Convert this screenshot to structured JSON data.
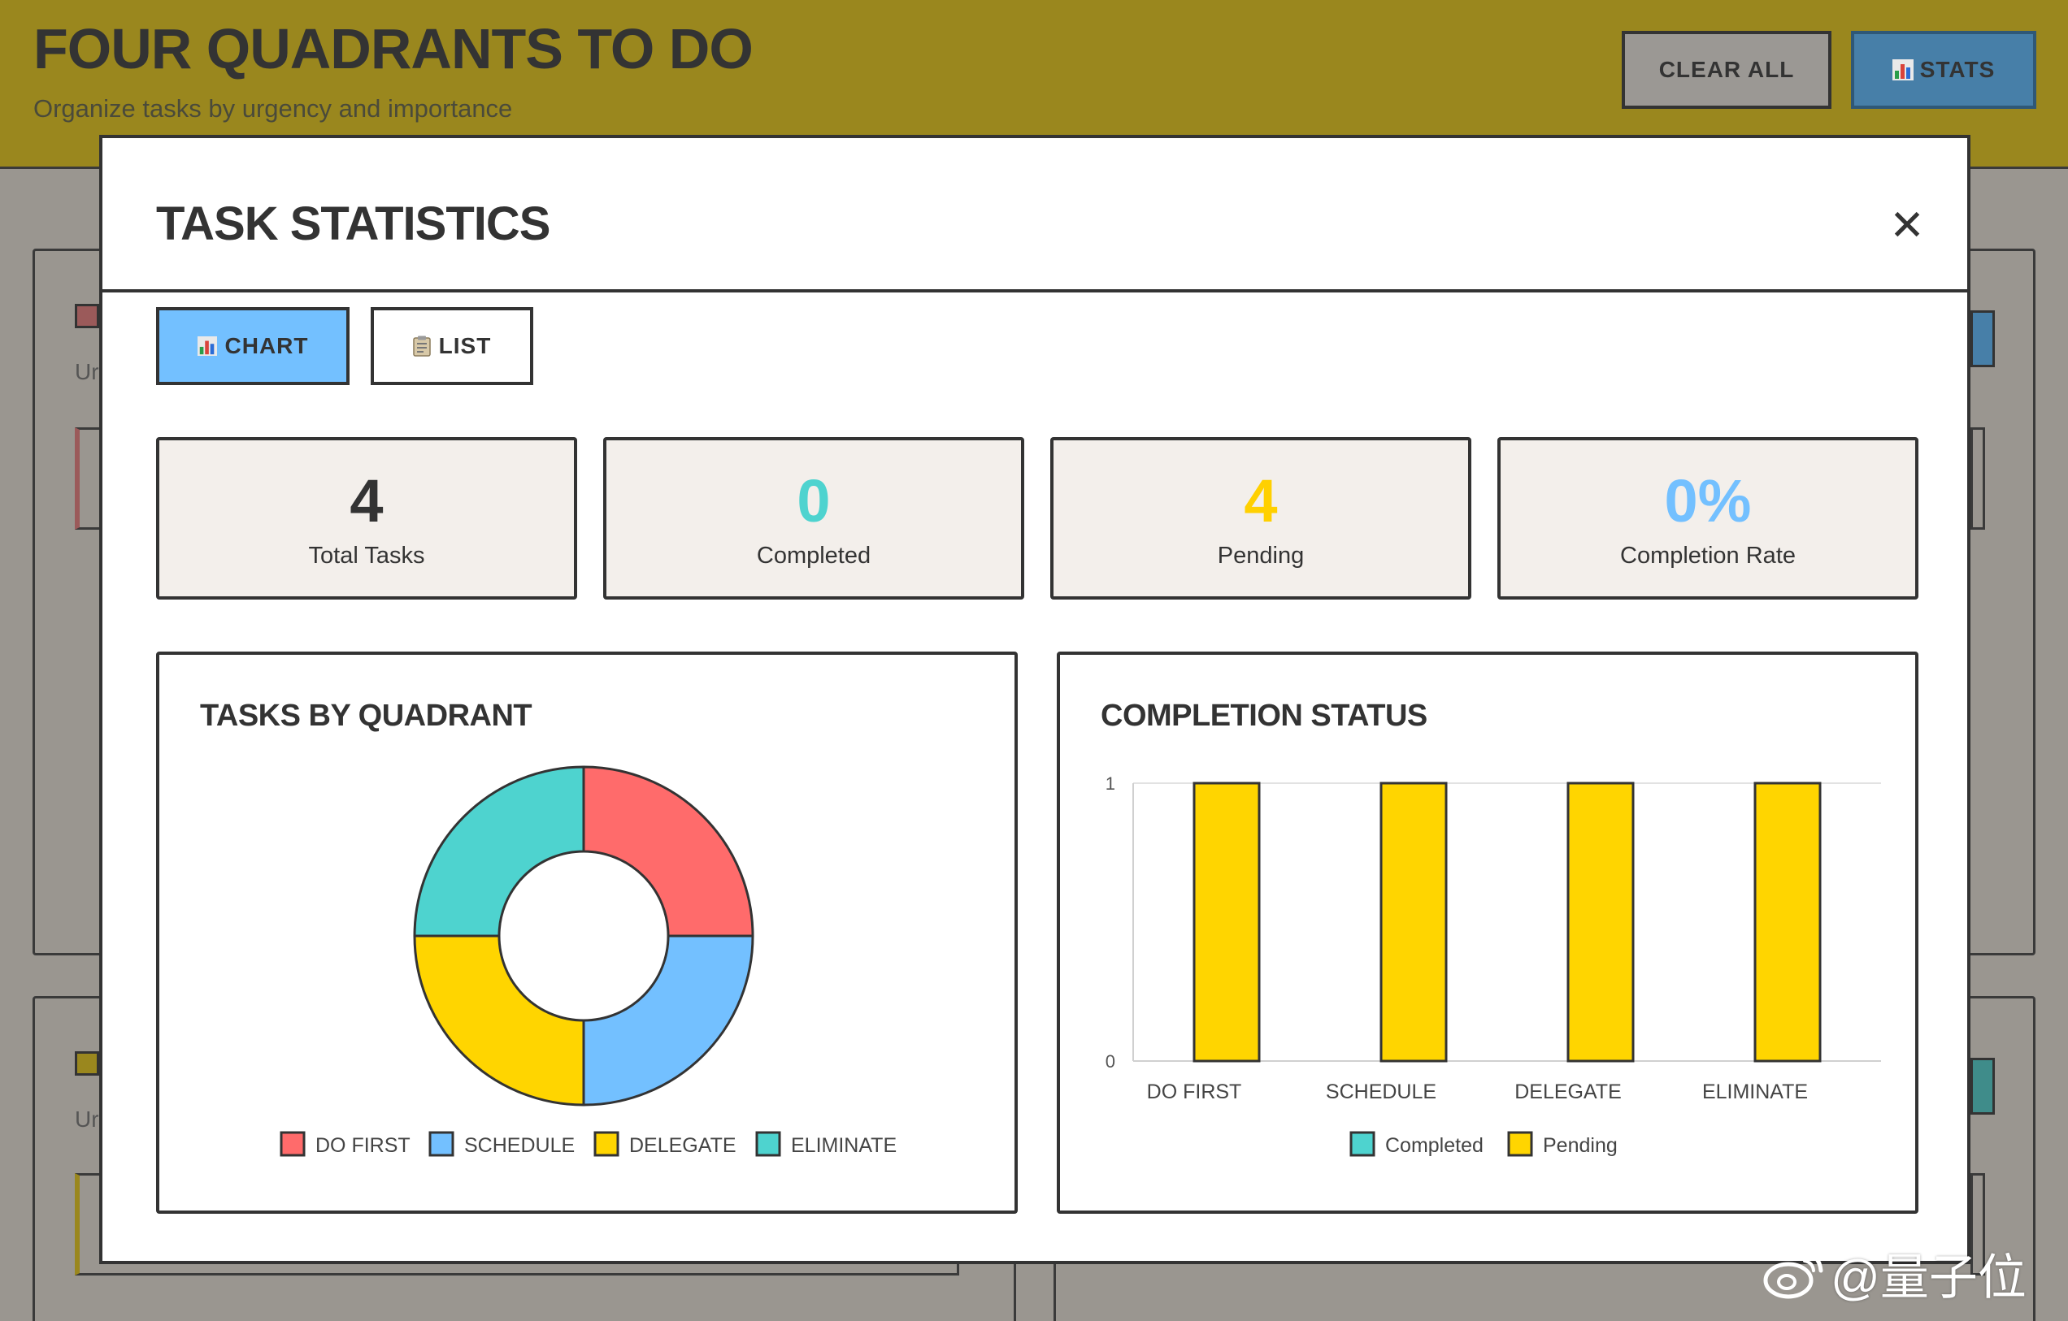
{
  "app": {
    "title": "FOUR QUADRANTS TO DO",
    "subtitle": "Organize tasks by urgency and importance",
    "clear_all_label": "CLEAR ALL",
    "stats_label": "STATS",
    "stats_icon": "bar-chart-icon",
    "bg_text_top": "Ur",
    "bg_text_bottom": "Ur"
  },
  "modal": {
    "title": "TASK STATISTICS",
    "close_symbol": "✕",
    "tabs": [
      {
        "label": "CHART",
        "icon": "bar-chart-icon",
        "active": true
      },
      {
        "label": "LIST",
        "icon": "clipboard-icon",
        "active": false
      }
    ],
    "stats": [
      {
        "value": "4",
        "label": "Total Tasks",
        "color": "#333333"
      },
      {
        "value": "0",
        "label": "Completed",
        "color": "#4ed3cf"
      },
      {
        "value": "4",
        "label": "Pending",
        "color": "#ffd000"
      },
      {
        "value": "0%",
        "label": "Completion Rate",
        "color": "#73c0ff"
      }
    ]
  },
  "chart_data": [
    {
      "type": "pie",
      "title": "TASKS BY QUADRANT",
      "donut": true,
      "categories": [
        "DO FIRST",
        "SCHEDULE",
        "DELEGATE",
        "ELIMINATE"
      ],
      "values": [
        1,
        1,
        1,
        1
      ],
      "colors": [
        "#ff6b6b",
        "#73c0ff",
        "#ffd500",
        "#4ed3cf"
      ],
      "legend_position": "bottom"
    },
    {
      "type": "bar",
      "title": "COMPLETION STATUS",
      "categories": [
        "DO FIRST",
        "SCHEDULE",
        "DELEGATE",
        "ELIMINATE"
      ],
      "series": [
        {
          "name": "Completed",
          "values": [
            0,
            0,
            0,
            0
          ],
          "color": "#4ed3cf"
        },
        {
          "name": "Pending",
          "values": [
            1,
            1,
            1,
            1
          ],
          "color": "#ffd500"
        }
      ],
      "yticks": [
        "0",
        "1"
      ],
      "ylim": [
        0,
        1
      ],
      "grid": true,
      "legend_position": "bottom"
    }
  ],
  "watermark": {
    "text": "@量子位",
    "icon": "weibo-icon"
  }
}
